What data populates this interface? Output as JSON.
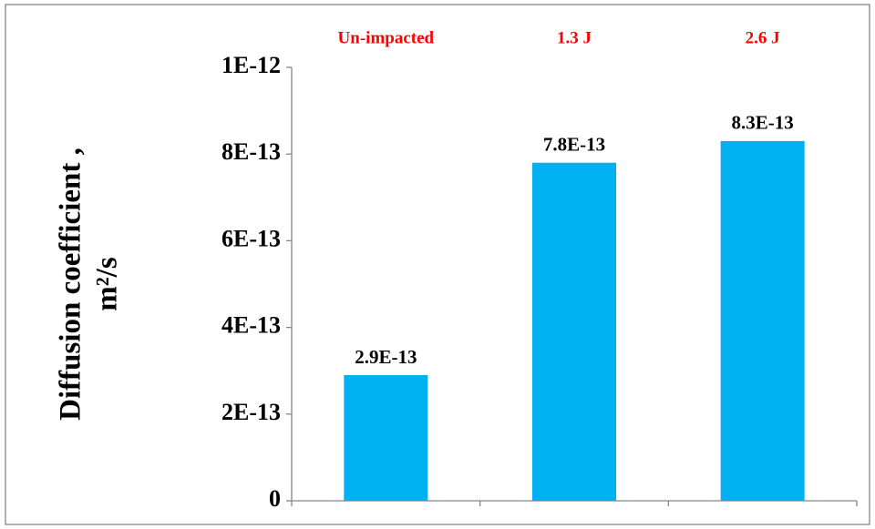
{
  "chart_data": {
    "type": "bar",
    "ylabel": [
      "Diffusion coefficient ,",
      "m²/s"
    ],
    "categories": [
      "Un-impacted",
      "1.3 J",
      "2.6 J"
    ],
    "values": [
      2.9e-13,
      7.8e-13,
      8.3e-13
    ],
    "value_labels": [
      "2.9E-13",
      "7.8E-13",
      "8.3E-13"
    ],
    "color": "#00b0f0",
    "category_color": "#ff0000",
    "ylim": [
      0,
      1e-12
    ],
    "yticks": [
      0,
      {
        "value": 2e-13,
        "label": "2E-13"
      },
      {
        "value": 4e-13,
        "label": "4E-13"
      },
      {
        "value": 6e-13,
        "label": "6E-13"
      },
      {
        "value": 8e-13,
        "label": "8E-13"
      },
      {
        "value": 1e-12,
        "label": "1E-12"
      }
    ],
    "grid": false
  }
}
